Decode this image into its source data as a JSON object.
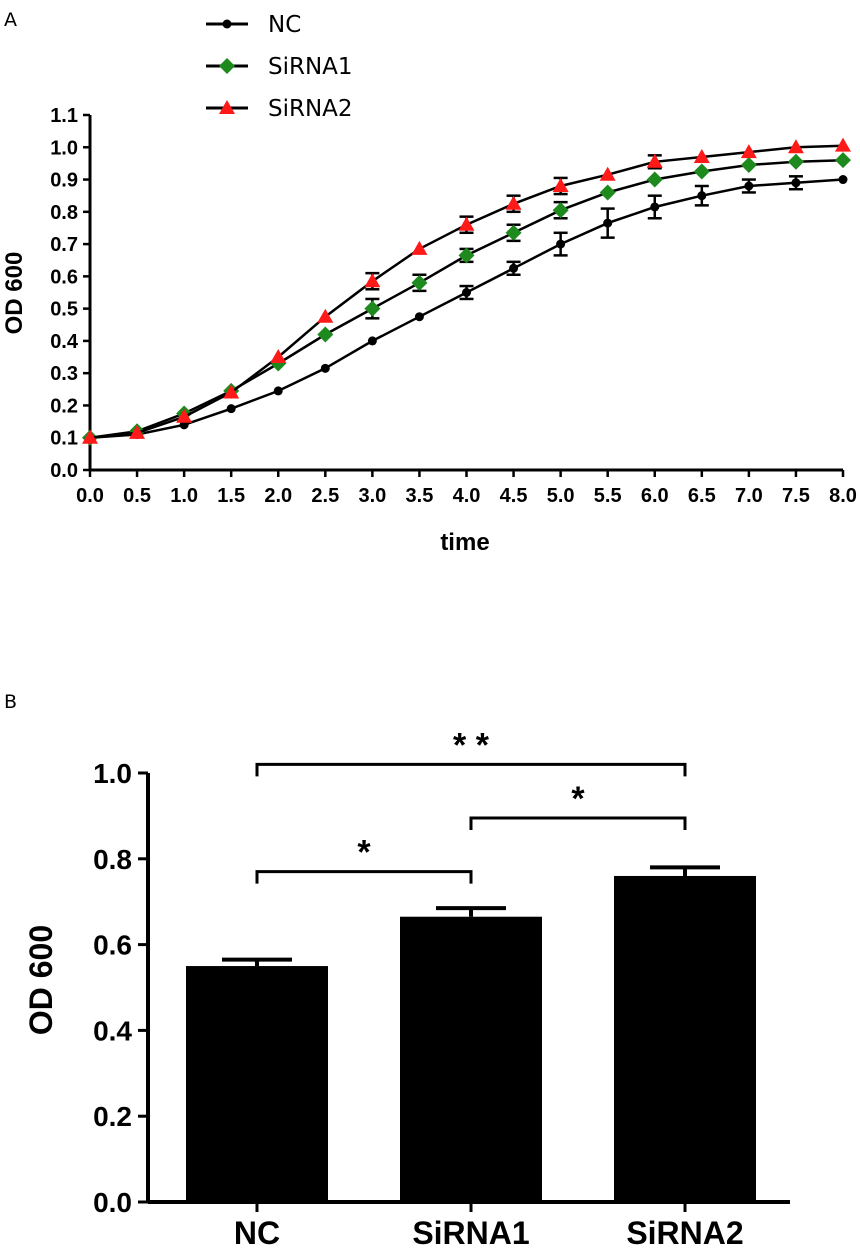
{
  "chart_data": [
    {
      "panel": "A",
      "type": "line",
      "title": "",
      "xlabel": "time",
      "ylabel": "OD 600",
      "xlim": [
        0,
        8
      ],
      "ylim": [
        0,
        1.1
      ],
      "x_ticks": [
        "0.0",
        "0.5",
        "1.0",
        "1.5",
        "2.0",
        "2.5",
        "3.0",
        "3.5",
        "4.0",
        "4.5",
        "5.0",
        "5.5",
        "6.0",
        "6.5",
        "7.0",
        "7.5",
        "8.0"
      ],
      "y_ticks": [
        "0.0",
        "0.1",
        "0.2",
        "0.3",
        "0.4",
        "0.5",
        "0.6",
        "0.7",
        "0.8",
        "0.9",
        "1.0",
        "1.1"
      ],
      "x": [
        0,
        0.5,
        1,
        1.5,
        2,
        2.5,
        3,
        3.5,
        4,
        4.5,
        5,
        5.5,
        6,
        6.5,
        7,
        7.5,
        8
      ],
      "legend_position": "top-left",
      "series": [
        {
          "name": "NC",
          "marker": "circle",
          "color": "#000000",
          "values": [
            0.1,
            0.11,
            0.14,
            0.19,
            0.245,
            0.315,
            0.4,
            0.475,
            0.55,
            0.625,
            0.7,
            0.765,
            0.815,
            0.85,
            0.88,
            0.89,
            0.9
          ],
          "errors": [
            0,
            0,
            0,
            0,
            0,
            0,
            0,
            0,
            0.02,
            0.02,
            0.035,
            0.045,
            0.035,
            0.03,
            0.02,
            0.02,
            0
          ]
        },
        {
          "name": "SiRNA1",
          "marker": "diamond",
          "color": "#1e8a1e",
          "values": [
            0.1,
            0.12,
            0.175,
            0.245,
            0.33,
            0.42,
            0.5,
            0.58,
            0.665,
            0.735,
            0.805,
            0.86,
            0.9,
            0.925,
            0.945,
            0.955,
            0.96
          ],
          "errors": [
            0,
            0,
            0,
            0,
            0,
            0,
            0.03,
            0.025,
            0.02,
            0.025,
            0.025,
            0,
            0,
            0,
            0,
            0,
            0
          ]
        },
        {
          "name": "SiRNA2",
          "marker": "triangle",
          "color": "#ff1a1a",
          "values": [
            0.1,
            0.115,
            0.165,
            0.24,
            0.35,
            0.475,
            0.585,
            0.685,
            0.76,
            0.825,
            0.88,
            0.915,
            0.955,
            0.97,
            0.985,
            1.0,
            1.005
          ],
          "errors": [
            0,
            0,
            0,
            0,
            0,
            0,
            0.025,
            0,
            0.025,
            0.025,
            0.025,
            0,
            0.02,
            0,
            0,
            0,
            0
          ]
        }
      ]
    },
    {
      "panel": "B",
      "type": "bar",
      "title": "",
      "xlabel": "",
      "ylabel": "OD 600",
      "ylim": [
        0,
        1.0
      ],
      "y_ticks": [
        "0.0",
        "0.2",
        "0.4",
        "0.6",
        "0.8",
        "1.0"
      ],
      "categories": [
        "NC",
        "SiRNA1",
        "SiRNA2"
      ],
      "values": [
        0.55,
        0.665,
        0.76
      ],
      "errors": [
        0.015,
        0.02,
        0.02
      ],
      "bar_color": "#000000",
      "significance": [
        {
          "from": "NC",
          "to": "SiRNA1",
          "label": "*",
          "level": 0.77
        },
        {
          "from": "SiRNA1",
          "to": "SiRNA2",
          "label": "*",
          "level": 0.895
        },
        {
          "from": "NC",
          "to": "SiRNA2",
          "label": "* *",
          "level": 1.02
        }
      ]
    }
  ]
}
